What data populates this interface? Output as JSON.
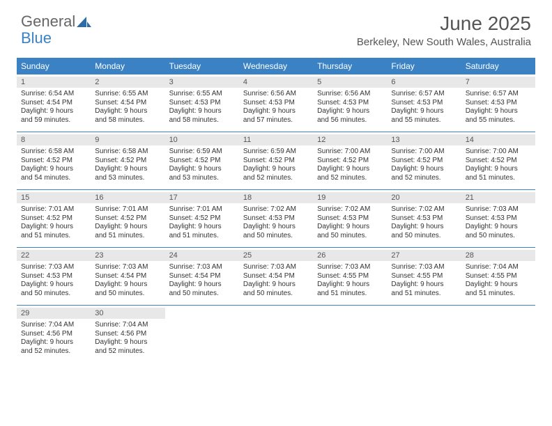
{
  "logo": {
    "part1": "General",
    "part2": "Blue"
  },
  "title": "June 2025",
  "location": "Berkeley, New South Wales, Australia",
  "header_color": "#3b82c4",
  "header_text_color": "#ffffff",
  "daynum_bg": "#e8e8e8",
  "border_color": "#3b82c4",
  "day_names": [
    "Sunday",
    "Monday",
    "Tuesday",
    "Wednesday",
    "Thursday",
    "Friday",
    "Saturday"
  ],
  "weeks": [
    [
      {
        "n": "1",
        "sr": "Sunrise: 6:54 AM",
        "ss": "Sunset: 4:54 PM",
        "d1": "Daylight: 9 hours",
        "d2": "and 59 minutes."
      },
      {
        "n": "2",
        "sr": "Sunrise: 6:55 AM",
        "ss": "Sunset: 4:54 PM",
        "d1": "Daylight: 9 hours",
        "d2": "and 58 minutes."
      },
      {
        "n": "3",
        "sr": "Sunrise: 6:55 AM",
        "ss": "Sunset: 4:53 PM",
        "d1": "Daylight: 9 hours",
        "d2": "and 58 minutes."
      },
      {
        "n": "4",
        "sr": "Sunrise: 6:56 AM",
        "ss": "Sunset: 4:53 PM",
        "d1": "Daylight: 9 hours",
        "d2": "and 57 minutes."
      },
      {
        "n": "5",
        "sr": "Sunrise: 6:56 AM",
        "ss": "Sunset: 4:53 PM",
        "d1": "Daylight: 9 hours",
        "d2": "and 56 minutes."
      },
      {
        "n": "6",
        "sr": "Sunrise: 6:57 AM",
        "ss": "Sunset: 4:53 PM",
        "d1": "Daylight: 9 hours",
        "d2": "and 55 minutes."
      },
      {
        "n": "7",
        "sr": "Sunrise: 6:57 AM",
        "ss": "Sunset: 4:53 PM",
        "d1": "Daylight: 9 hours",
        "d2": "and 55 minutes."
      }
    ],
    [
      {
        "n": "8",
        "sr": "Sunrise: 6:58 AM",
        "ss": "Sunset: 4:52 PM",
        "d1": "Daylight: 9 hours",
        "d2": "and 54 minutes."
      },
      {
        "n": "9",
        "sr": "Sunrise: 6:58 AM",
        "ss": "Sunset: 4:52 PM",
        "d1": "Daylight: 9 hours",
        "d2": "and 53 minutes."
      },
      {
        "n": "10",
        "sr": "Sunrise: 6:59 AM",
        "ss": "Sunset: 4:52 PM",
        "d1": "Daylight: 9 hours",
        "d2": "and 53 minutes."
      },
      {
        "n": "11",
        "sr": "Sunrise: 6:59 AM",
        "ss": "Sunset: 4:52 PM",
        "d1": "Daylight: 9 hours",
        "d2": "and 52 minutes."
      },
      {
        "n": "12",
        "sr": "Sunrise: 7:00 AM",
        "ss": "Sunset: 4:52 PM",
        "d1": "Daylight: 9 hours",
        "d2": "and 52 minutes."
      },
      {
        "n": "13",
        "sr": "Sunrise: 7:00 AM",
        "ss": "Sunset: 4:52 PM",
        "d1": "Daylight: 9 hours",
        "d2": "and 52 minutes."
      },
      {
        "n": "14",
        "sr": "Sunrise: 7:00 AM",
        "ss": "Sunset: 4:52 PM",
        "d1": "Daylight: 9 hours",
        "d2": "and 51 minutes."
      }
    ],
    [
      {
        "n": "15",
        "sr": "Sunrise: 7:01 AM",
        "ss": "Sunset: 4:52 PM",
        "d1": "Daylight: 9 hours",
        "d2": "and 51 minutes."
      },
      {
        "n": "16",
        "sr": "Sunrise: 7:01 AM",
        "ss": "Sunset: 4:52 PM",
        "d1": "Daylight: 9 hours",
        "d2": "and 51 minutes."
      },
      {
        "n": "17",
        "sr": "Sunrise: 7:01 AM",
        "ss": "Sunset: 4:52 PM",
        "d1": "Daylight: 9 hours",
        "d2": "and 51 minutes."
      },
      {
        "n": "18",
        "sr": "Sunrise: 7:02 AM",
        "ss": "Sunset: 4:53 PM",
        "d1": "Daylight: 9 hours",
        "d2": "and 50 minutes."
      },
      {
        "n": "19",
        "sr": "Sunrise: 7:02 AM",
        "ss": "Sunset: 4:53 PM",
        "d1": "Daylight: 9 hours",
        "d2": "and 50 minutes."
      },
      {
        "n": "20",
        "sr": "Sunrise: 7:02 AM",
        "ss": "Sunset: 4:53 PM",
        "d1": "Daylight: 9 hours",
        "d2": "and 50 minutes."
      },
      {
        "n": "21",
        "sr": "Sunrise: 7:03 AM",
        "ss": "Sunset: 4:53 PM",
        "d1": "Daylight: 9 hours",
        "d2": "and 50 minutes."
      }
    ],
    [
      {
        "n": "22",
        "sr": "Sunrise: 7:03 AM",
        "ss": "Sunset: 4:53 PM",
        "d1": "Daylight: 9 hours",
        "d2": "and 50 minutes."
      },
      {
        "n": "23",
        "sr": "Sunrise: 7:03 AM",
        "ss": "Sunset: 4:54 PM",
        "d1": "Daylight: 9 hours",
        "d2": "and 50 minutes."
      },
      {
        "n": "24",
        "sr": "Sunrise: 7:03 AM",
        "ss": "Sunset: 4:54 PM",
        "d1": "Daylight: 9 hours",
        "d2": "and 50 minutes."
      },
      {
        "n": "25",
        "sr": "Sunrise: 7:03 AM",
        "ss": "Sunset: 4:54 PM",
        "d1": "Daylight: 9 hours",
        "d2": "and 50 minutes."
      },
      {
        "n": "26",
        "sr": "Sunrise: 7:03 AM",
        "ss": "Sunset: 4:55 PM",
        "d1": "Daylight: 9 hours",
        "d2": "and 51 minutes."
      },
      {
        "n": "27",
        "sr": "Sunrise: 7:03 AM",
        "ss": "Sunset: 4:55 PM",
        "d1": "Daylight: 9 hours",
        "d2": "and 51 minutes."
      },
      {
        "n": "28",
        "sr": "Sunrise: 7:04 AM",
        "ss": "Sunset: 4:55 PM",
        "d1": "Daylight: 9 hours",
        "d2": "and 51 minutes."
      }
    ],
    [
      {
        "n": "29",
        "sr": "Sunrise: 7:04 AM",
        "ss": "Sunset: 4:56 PM",
        "d1": "Daylight: 9 hours",
        "d2": "and 52 minutes."
      },
      {
        "n": "30",
        "sr": "Sunrise: 7:04 AM",
        "ss": "Sunset: 4:56 PM",
        "d1": "Daylight: 9 hours",
        "d2": "and 52 minutes."
      },
      null,
      null,
      null,
      null,
      null
    ]
  ]
}
